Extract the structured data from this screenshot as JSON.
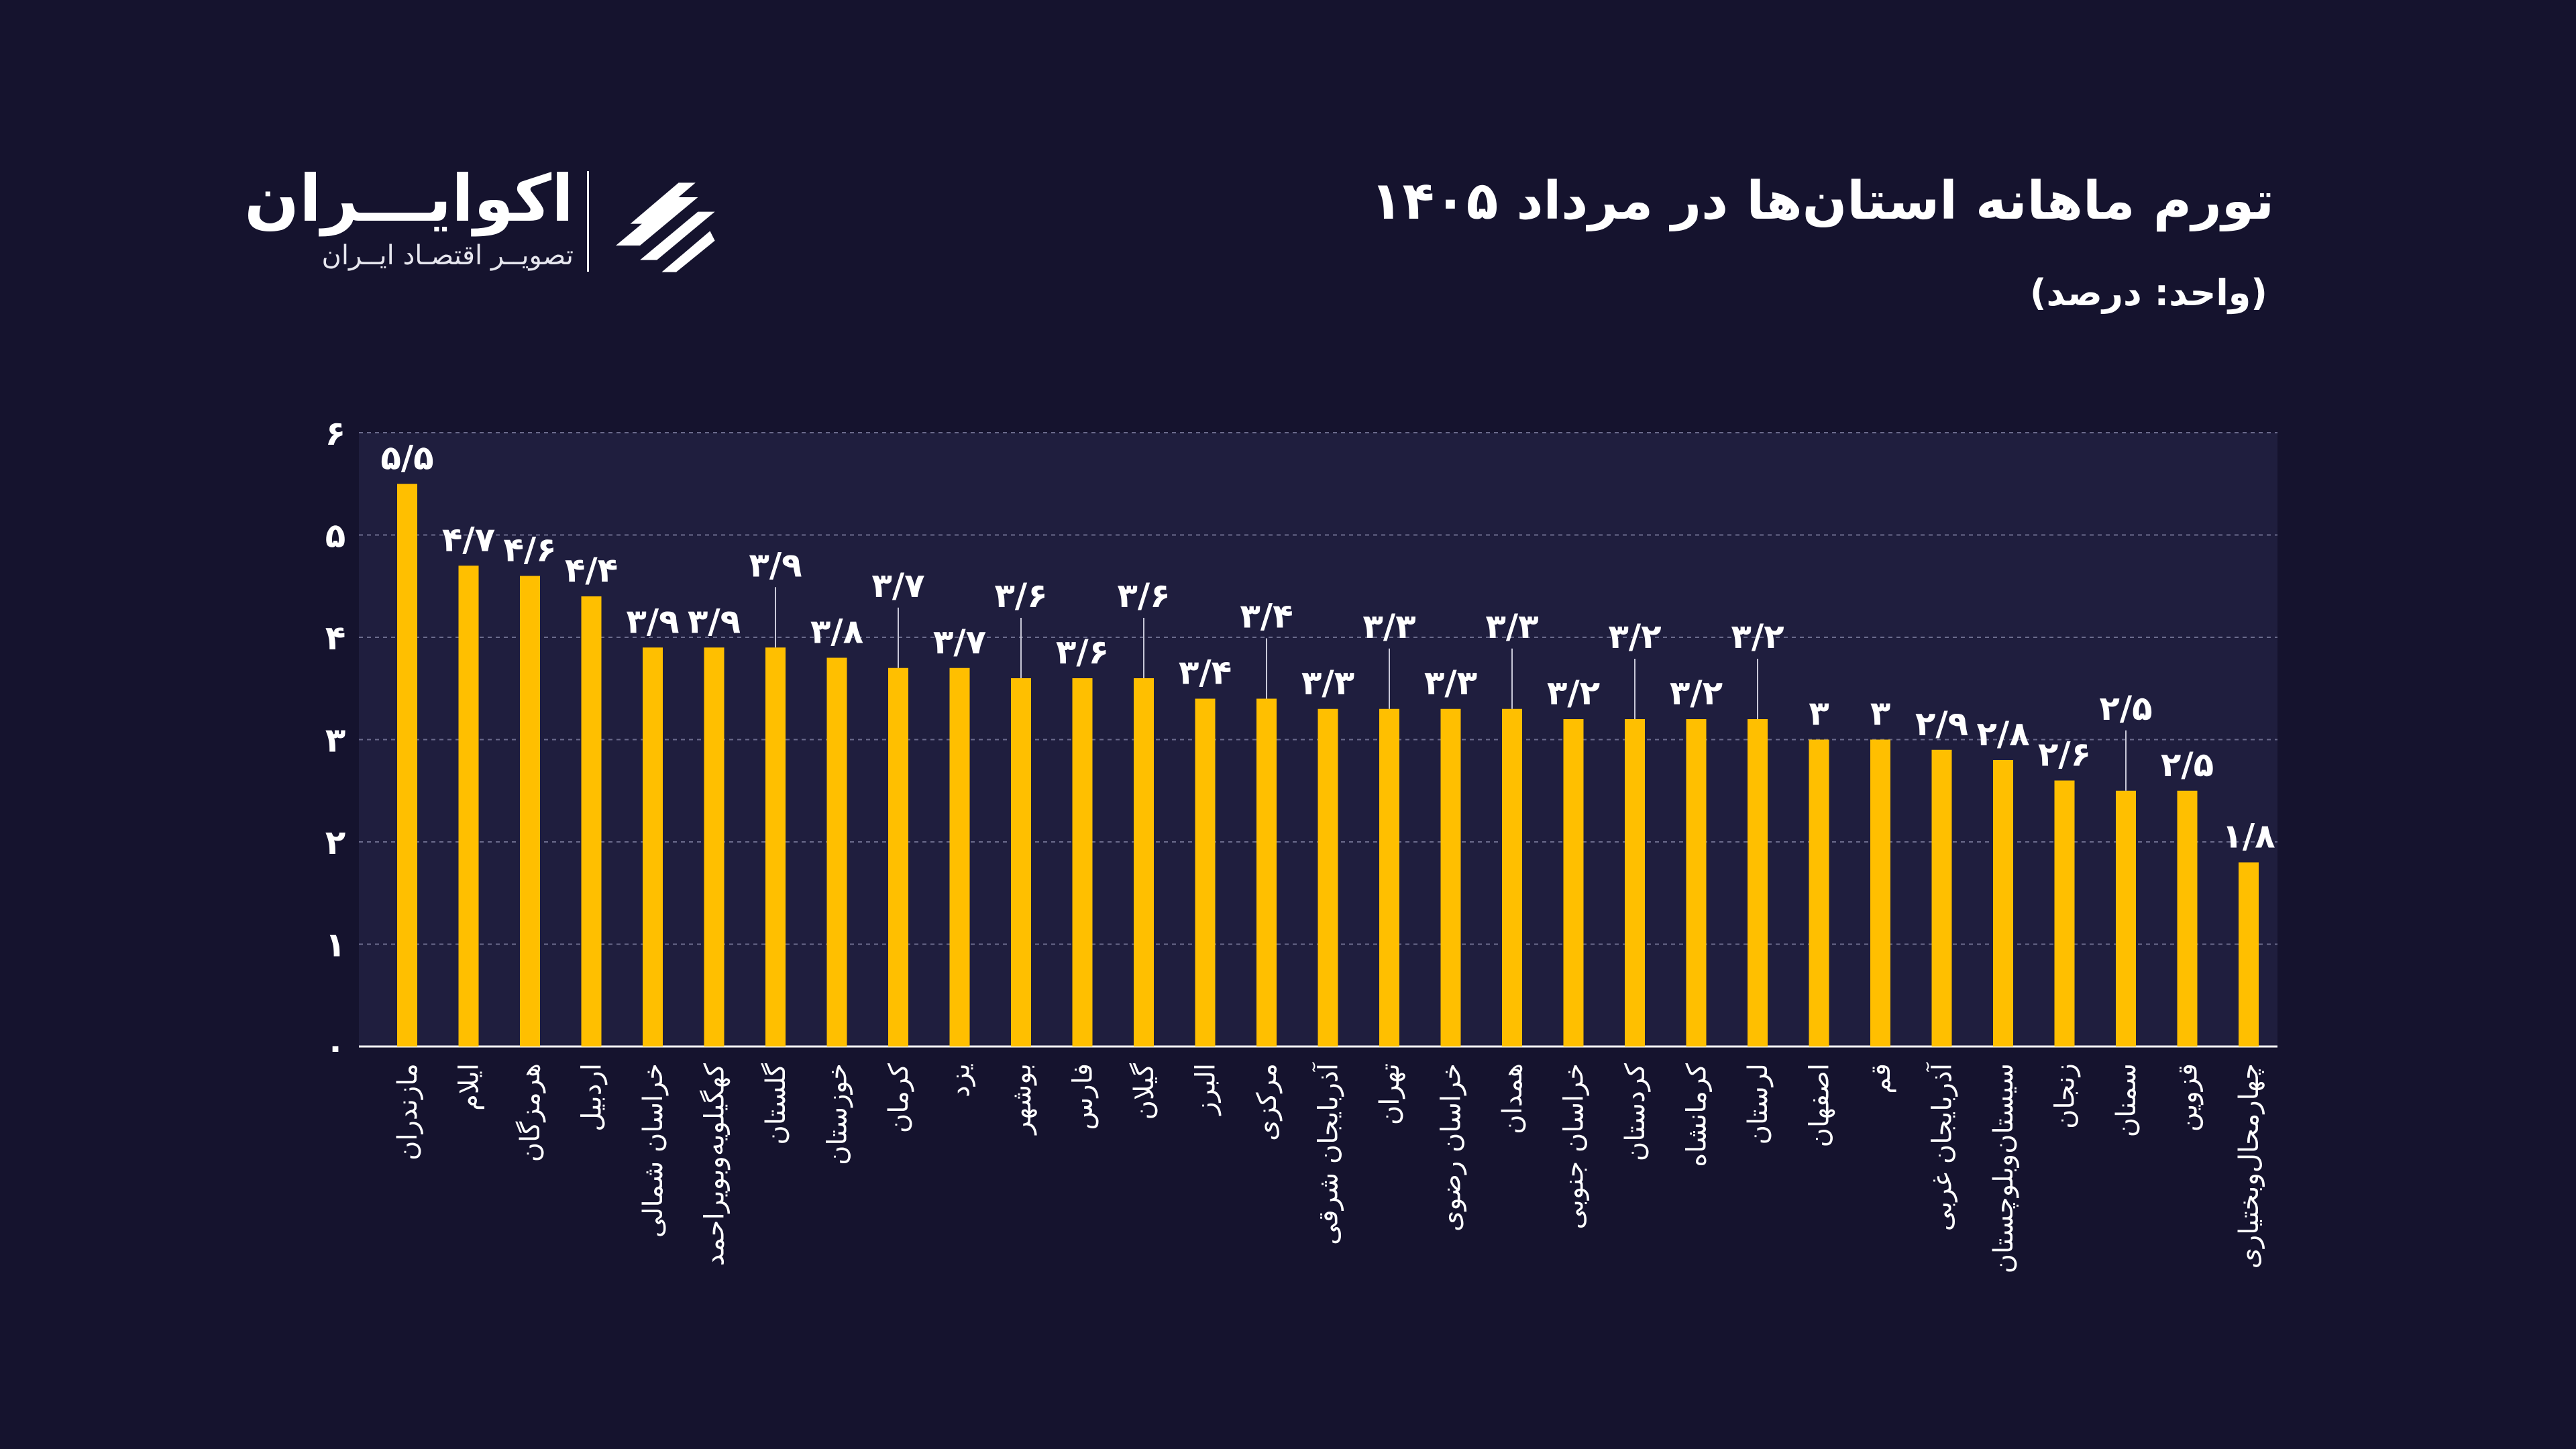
{
  "header": {
    "title": "تورم ماهانه استان‌ها در مرداد ۱۴۰۵",
    "subtitle": "(واحد: درصد)"
  },
  "brand": {
    "name": "اکوایـــران",
    "tagline": "تصویــر اقتصـاد ایــران",
    "logo_icon": "ecoiran-logo-icon"
  },
  "colors": {
    "background": "#15132e",
    "plot_background": "#1f1e3e",
    "bar": "#ffbf00",
    "text": "#ffffff",
    "grid": "#6b6b8c"
  },
  "chart_data": {
    "type": "bar",
    "ylim": [
      0,
      6
    ],
    "yticks": [
      0,
      1,
      2,
      3,
      4,
      5,
      6
    ],
    "ytick_labels": [
      "۰",
      "۱",
      "۲",
      "۳",
      "۴",
      "۵",
      "۶"
    ],
    "grid": true,
    "categories": [
      "مازندران",
      "ایلام",
      "هرمزگان",
      "اردبیل",
      "خراسان شمالی",
      "کهگیلویه‌وبویراحمد",
      "گلستان",
      "خوزستان",
      "کرمان",
      "یزد",
      "بوشهر",
      "فارس",
      "گیلان",
      "البرز",
      "مرکزی",
      "آذربایجان شرقی",
      "تهران",
      "خراسان رضوی",
      "همدان",
      "خراسان جنوبی",
      "کردستان",
      "کرمانشاه",
      "لرستان",
      "اصفهان",
      "قم",
      "آذربایجان غربی",
      "سیستان‌وبلوچستان",
      "زنجان",
      "سمنان",
      "قزوین",
      "چهارمحال‌وبختیاری"
    ],
    "values": [
      5.5,
      4.7,
      4.6,
      4.4,
      3.9,
      3.9,
      3.9,
      3.8,
      3.7,
      3.7,
      3.6,
      3.6,
      3.6,
      3.4,
      3.4,
      3.3,
      3.3,
      3.3,
      3.3,
      3.2,
      3.2,
      3.2,
      3.2,
      3.0,
      3.0,
      2.9,
      2.8,
      2.6,
      2.5,
      2.5,
      1.8
    ],
    "value_labels": [
      "۵/۵",
      "۴/۷",
      "۴/۶",
      "۴/۴",
      "۳/۹",
      "۳/۹",
      "۳/۹",
      "۳/۸",
      "۳/۷",
      "۳/۷",
      "۳/۶",
      "۳/۶",
      "۳/۶",
      "۳/۴",
      "۳/۴",
      "۳/۳",
      "۳/۳",
      "۳/۳",
      "۳/۳",
      "۳/۲",
      "۳/۲",
      "۳/۲",
      "۳/۲",
      "۳",
      "۳",
      "۲/۹",
      "۲/۸",
      "۲/۶",
      "۲/۵",
      "۲/۵",
      "۱/۸"
    ],
    "label_raised": [
      false,
      false,
      false,
      false,
      false,
      false,
      true,
      false,
      true,
      false,
      true,
      false,
      true,
      false,
      true,
      false,
      true,
      false,
      true,
      false,
      true,
      false,
      true,
      false,
      false,
      false,
      false,
      false,
      true,
      false,
      false
    ]
  }
}
